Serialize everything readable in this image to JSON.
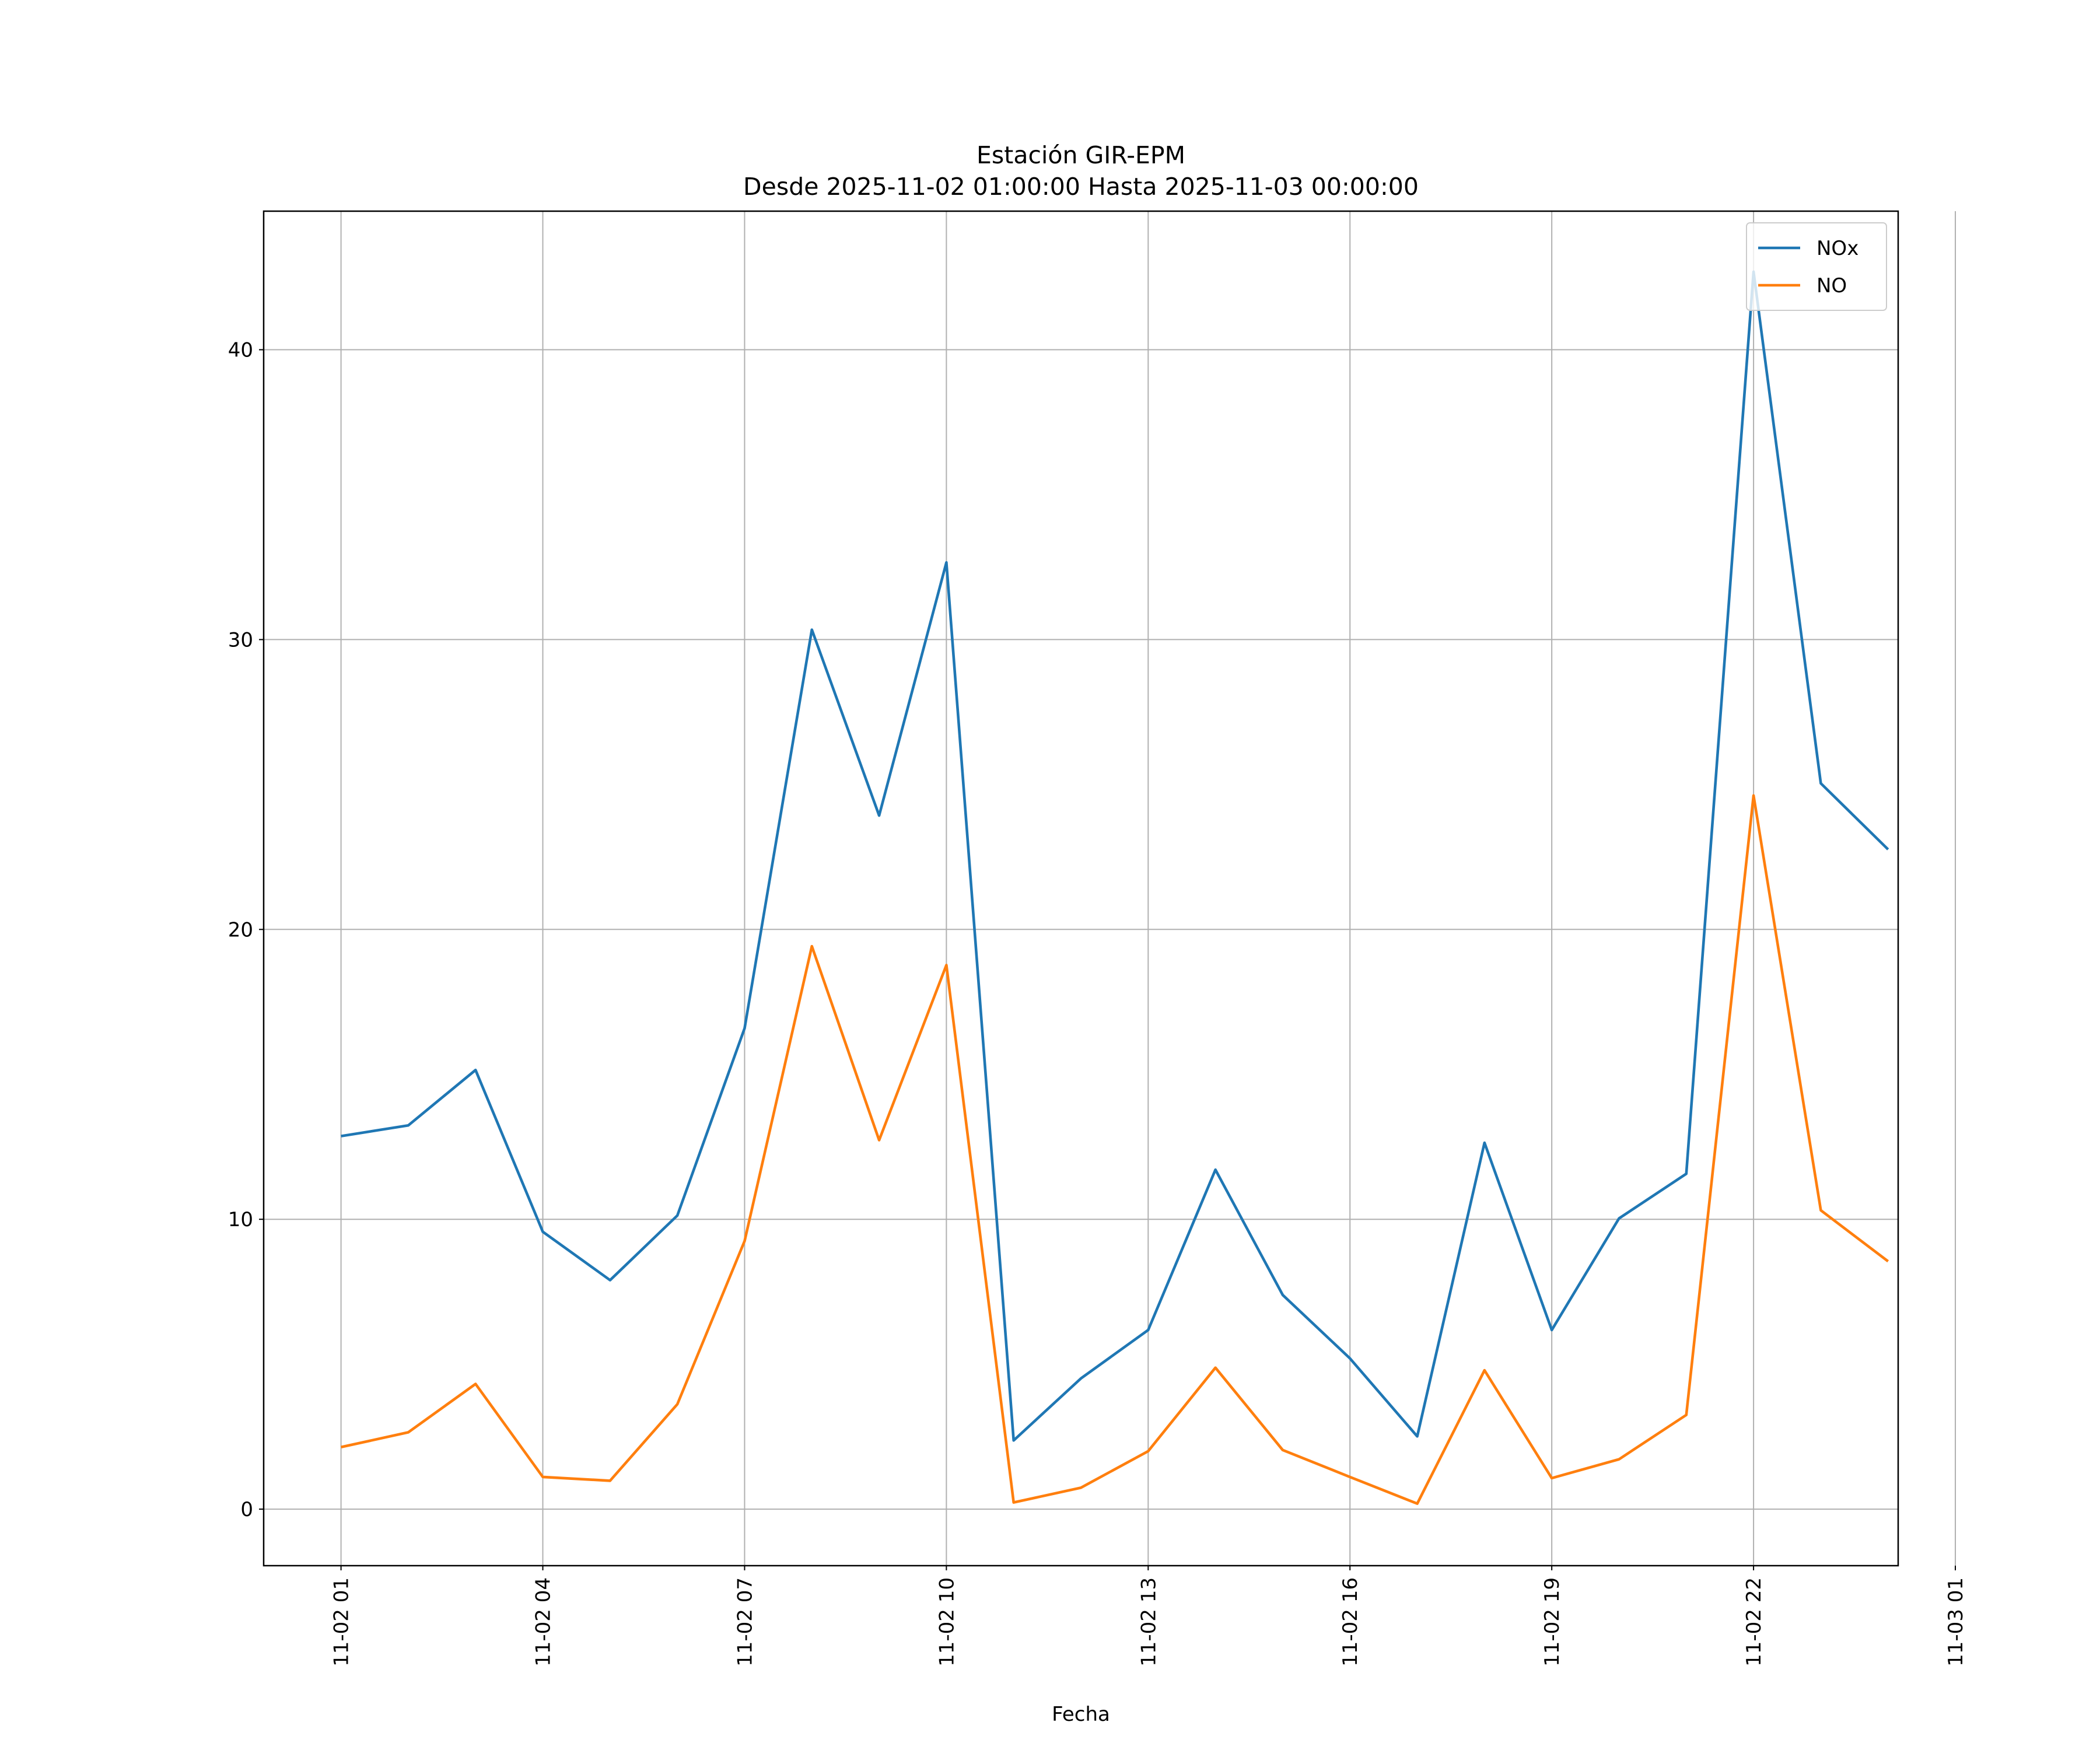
{
  "chart_data": {
    "type": "line",
    "title": "Estación GIR-EPM",
    "subtitle": "Desde 2025-11-02 01:00:00 Hasta 2025-11-03 00:00:00",
    "x_label": "Fecha",
    "x": [
      "11-02 01",
      "11-02 02",
      "11-02 03",
      "11-02 04",
      "11-02 05",
      "11-02 06",
      "11-02 07",
      "11-02 08",
      "11-02 09",
      "11-02 10",
      "11-02 11",
      "11-02 12",
      "11-02 13",
      "11-02 14",
      "11-02 15",
      "11-02 16",
      "11-02 17",
      "11-02 18",
      "11-02 19",
      "11-02 20",
      "11-02 21",
      "11-02 22",
      "11-02 23",
      "11-03 00"
    ],
    "series": [
      {
        "name": "NOx",
        "color": "#1f77b4",
        "values": [
          12.87,
          13.24,
          15.15,
          9.57,
          7.9,
          10.13,
          16.59,
          30.34,
          23.93,
          32.66,
          2.37,
          4.51,
          6.18,
          11.71,
          7.39,
          5.2,
          2.51,
          12.64,
          6.18,
          10.03,
          11.57,
          42.69,
          25.04,
          22.76
        ]
      },
      {
        "name": "NO",
        "color": "#ff7f0e",
        "values": [
          2.14,
          2.65,
          4.32,
          1.11,
          0.98,
          3.62,
          9.25,
          19.42,
          12.73,
          18.77,
          0.23,
          0.74,
          2.0,
          4.88,
          2.04,
          1.11,
          0.19,
          4.79,
          1.07,
          1.72,
          3.25,
          24.62,
          10.31,
          8.55
        ]
      }
    ],
    "xlim": [
      "11-01 23:51",
      "11-03 00:09"
    ],
    "xticks": [
      "11-02 01",
      "11-02 04",
      "11-02 07",
      "11-02 10",
      "11-02 13",
      "11-02 16",
      "11-02 19",
      "11-02 22",
      "11-03 01"
    ],
    "ylim": [
      -1.95,
      44.78
    ],
    "yticks": [
      0,
      10,
      20,
      30,
      40
    ],
    "grid": true,
    "legend": "upper right"
  }
}
